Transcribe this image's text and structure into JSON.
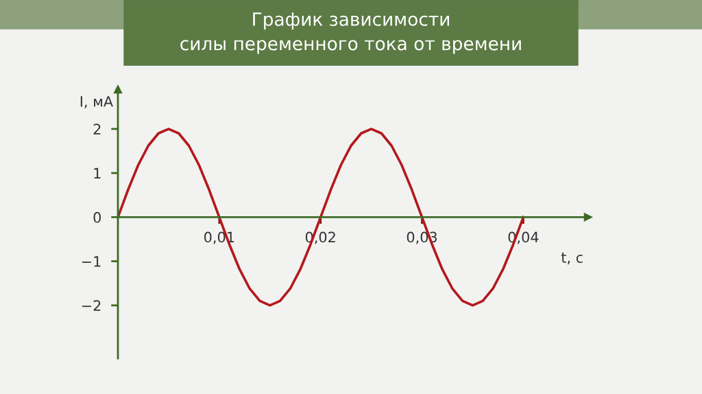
{
  "chart_data": {
    "type": "line",
    "title": "График зависимости\nсилы переменного тока от времени",
    "xlabel": "t, с",
    "ylabel": "I, мА",
    "x": [
      0,
      0.001,
      0.002,
      0.003,
      0.004,
      0.005,
      0.006,
      0.007,
      0.008,
      0.009,
      0.01,
      0.011,
      0.012,
      0.013,
      0.014,
      0.015,
      0.016,
      0.017,
      0.018,
      0.019,
      0.02,
      0.021,
      0.022,
      0.023,
      0.024,
      0.025,
      0.026,
      0.027,
      0.028,
      0.029,
      0.03,
      0.031,
      0.032,
      0.033,
      0.034,
      0.035,
      0.036,
      0.037,
      0.038,
      0.039,
      0.04
    ],
    "series": [
      {
        "color": "#b3191c",
        "values": [
          0,
          0.62,
          1.18,
          1.62,
          1.9,
          2,
          1.9,
          1.62,
          1.18,
          0.62,
          0,
          -0.62,
          -1.18,
          -1.62,
          -1.9,
          -2,
          -1.9,
          -1.62,
          -1.18,
          -0.62,
          0,
          0.62,
          1.18,
          1.62,
          1.9,
          2,
          1.9,
          1.62,
          1.18,
          0.62,
          0,
          -0.62,
          -1.18,
          -1.62,
          -1.9,
          -2,
          -1.9,
          -1.62,
          -1.18,
          -0.62,
          0
        ]
      }
    ],
    "xlim": [
      0,
      0.0464
    ],
    "ylim": [
      -3.2,
      2.9
    ],
    "xticks": [
      {
        "value": 0.01,
        "label": "0,01"
      },
      {
        "value": 0.02,
        "label": "0,02"
      },
      {
        "value": 0.03,
        "label": "0,03"
      },
      {
        "value": 0.04,
        "label": "0,04"
      }
    ],
    "yticks": [
      {
        "value": -2,
        "label": "−2"
      },
      {
        "value": -1,
        "label": "−1"
      },
      0,
      1,
      2
    ]
  }
}
